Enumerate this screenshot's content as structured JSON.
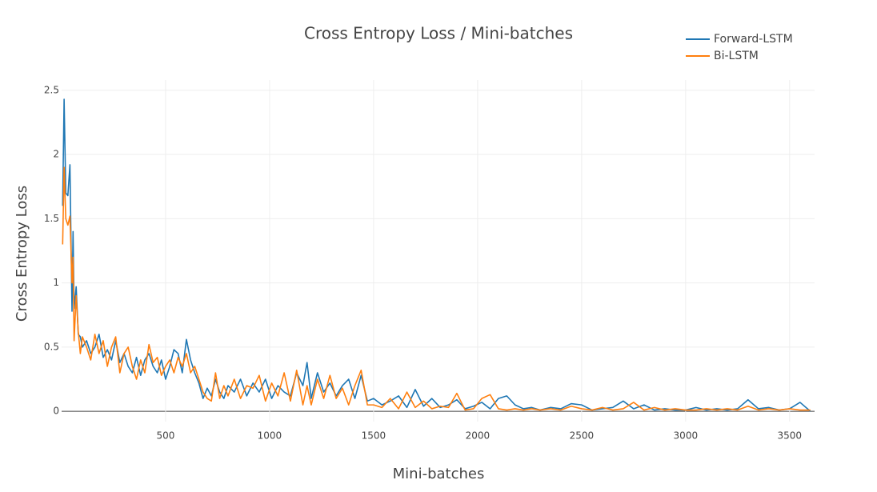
{
  "chart_data": {
    "type": "line",
    "title": "Cross Entropy Loss / Mini-batches",
    "x_label": "Mini-batches",
    "y_label": "Cross Entropy Loss",
    "x": [
      5,
      12,
      20,
      30,
      40,
      50,
      55,
      60,
      70,
      80,
      90,
      100,
      120,
      140,
      160,
      180,
      200,
      220,
      240,
      260,
      280,
      300,
      320,
      340,
      360,
      380,
      400,
      420,
      440,
      460,
      480,
      500,
      520,
      540,
      560,
      580,
      600,
      620,
      640,
      660,
      680,
      700,
      720,
      740,
      760,
      780,
      800,
      830,
      860,
      890,
      920,
      950,
      980,
      1010,
      1040,
      1070,
      1100,
      1130,
      1160,
      1180,
      1200,
      1230,
      1260,
      1290,
      1320,
      1350,
      1380,
      1410,
      1440,
      1470,
      1500,
      1540,
      1580,
      1620,
      1660,
      1700,
      1740,
      1780,
      1820,
      1860,
      1900,
      1940,
      1980,
      2020,
      2060,
      2100,
      2140,
      2180,
      2220,
      2260,
      2300,
      2350,
      2400,
      2450,
      2500,
      2550,
      2600,
      2650,
      2700,
      2750,
      2800,
      2850,
      2900,
      2950,
      3000,
      3050,
      3100,
      3150,
      3200,
      3250,
      3300,
      3350,
      3400,
      3450,
      3500,
      3550,
      3600
    ],
    "series": [
      {
        "name": "Forward-LSTM",
        "color": "#1f77b4",
        "values": [
          1.6,
          2.43,
          1.7,
          1.68,
          1.92,
          0.78,
          1.4,
          0.8,
          0.97,
          0.6,
          0.58,
          0.5,
          0.55,
          0.45,
          0.5,
          0.6,
          0.42,
          0.48,
          0.4,
          0.55,
          0.38,
          0.45,
          0.35,
          0.3,
          0.42,
          0.28,
          0.4,
          0.45,
          0.35,
          0.3,
          0.4,
          0.25,
          0.35,
          0.48,
          0.45,
          0.3,
          0.56,
          0.4,
          0.3,
          0.22,
          0.1,
          0.18,
          0.12,
          0.25,
          0.15,
          0.1,
          0.2,
          0.15,
          0.25,
          0.12,
          0.22,
          0.15,
          0.25,
          0.1,
          0.2,
          0.15,
          0.12,
          0.3,
          0.2,
          0.38,
          0.1,
          0.3,
          0.15,
          0.22,
          0.12,
          0.2,
          0.25,
          0.1,
          0.28,
          0.08,
          0.1,
          0.05,
          0.08,
          0.12,
          0.03,
          0.17,
          0.04,
          0.1,
          0.03,
          0.05,
          0.09,
          0.02,
          0.04,
          0.07,
          0.02,
          0.1,
          0.12,
          0.05,
          0.02,
          0.03,
          0.01,
          0.03,
          0.02,
          0.06,
          0.05,
          0.01,
          0.02,
          0.03,
          0.08,
          0.02,
          0.05,
          0.01,
          0.02,
          0.01,
          0.01,
          0.03,
          0.01,
          0.02,
          0.01,
          0.02,
          0.09,
          0.02,
          0.03,
          0.01,
          0.02,
          0.07,
          0
        ]
      },
      {
        "name": "Bi-LSTM",
        "color": "#ff7f0e",
        "values": [
          1.3,
          1.9,
          1.5,
          1.45,
          1.52,
          1.0,
          1.2,
          0.55,
          0.9,
          0.62,
          0.45,
          0.58,
          0.5,
          0.4,
          0.6,
          0.45,
          0.55,
          0.35,
          0.5,
          0.58,
          0.3,
          0.45,
          0.5,
          0.35,
          0.25,
          0.4,
          0.3,
          0.52,
          0.38,
          0.42,
          0.28,
          0.35,
          0.4,
          0.3,
          0.42,
          0.35,
          0.45,
          0.3,
          0.35,
          0.25,
          0.15,
          0.1,
          0.08,
          0.3,
          0.1,
          0.2,
          0.12,
          0.25,
          0.1,
          0.2,
          0.18,
          0.28,
          0.08,
          0.22,
          0.12,
          0.3,
          0.08,
          0.32,
          0.05,
          0.2,
          0.05,
          0.25,
          0.1,
          0.28,
          0.1,
          0.18,
          0.05,
          0.2,
          0.32,
          0.05,
          0.05,
          0.03,
          0.1,
          0.02,
          0.15,
          0.03,
          0.08,
          0.02,
          0.04,
          0.03,
          0.14,
          0.01,
          0.02,
          0.1,
          0.13,
          0.02,
          0.01,
          0.02,
          0.01,
          0.02,
          0.01,
          0.02,
          0.01,
          0.04,
          0.02,
          0.01,
          0.03,
          0.01,
          0.02,
          0.07,
          0.01,
          0.03,
          0.01,
          0.02,
          0.01,
          0.01,
          0.02,
          0.01,
          0.02,
          0.01,
          0.04,
          0.01,
          0.02,
          0.01,
          0.02,
          0.01,
          0.01
        ]
      }
    ],
    "xlim": [
      0,
      3620
    ],
    "ylim": [
      -0.08,
      2.58
    ],
    "xticks": [
      500,
      1000,
      1500,
      2000,
      2500,
      3000,
      3500
    ],
    "yticks": [
      0,
      0.5,
      1,
      1.5,
      2,
      2.5
    ],
    "grid": true,
    "legend": "top-right"
  }
}
